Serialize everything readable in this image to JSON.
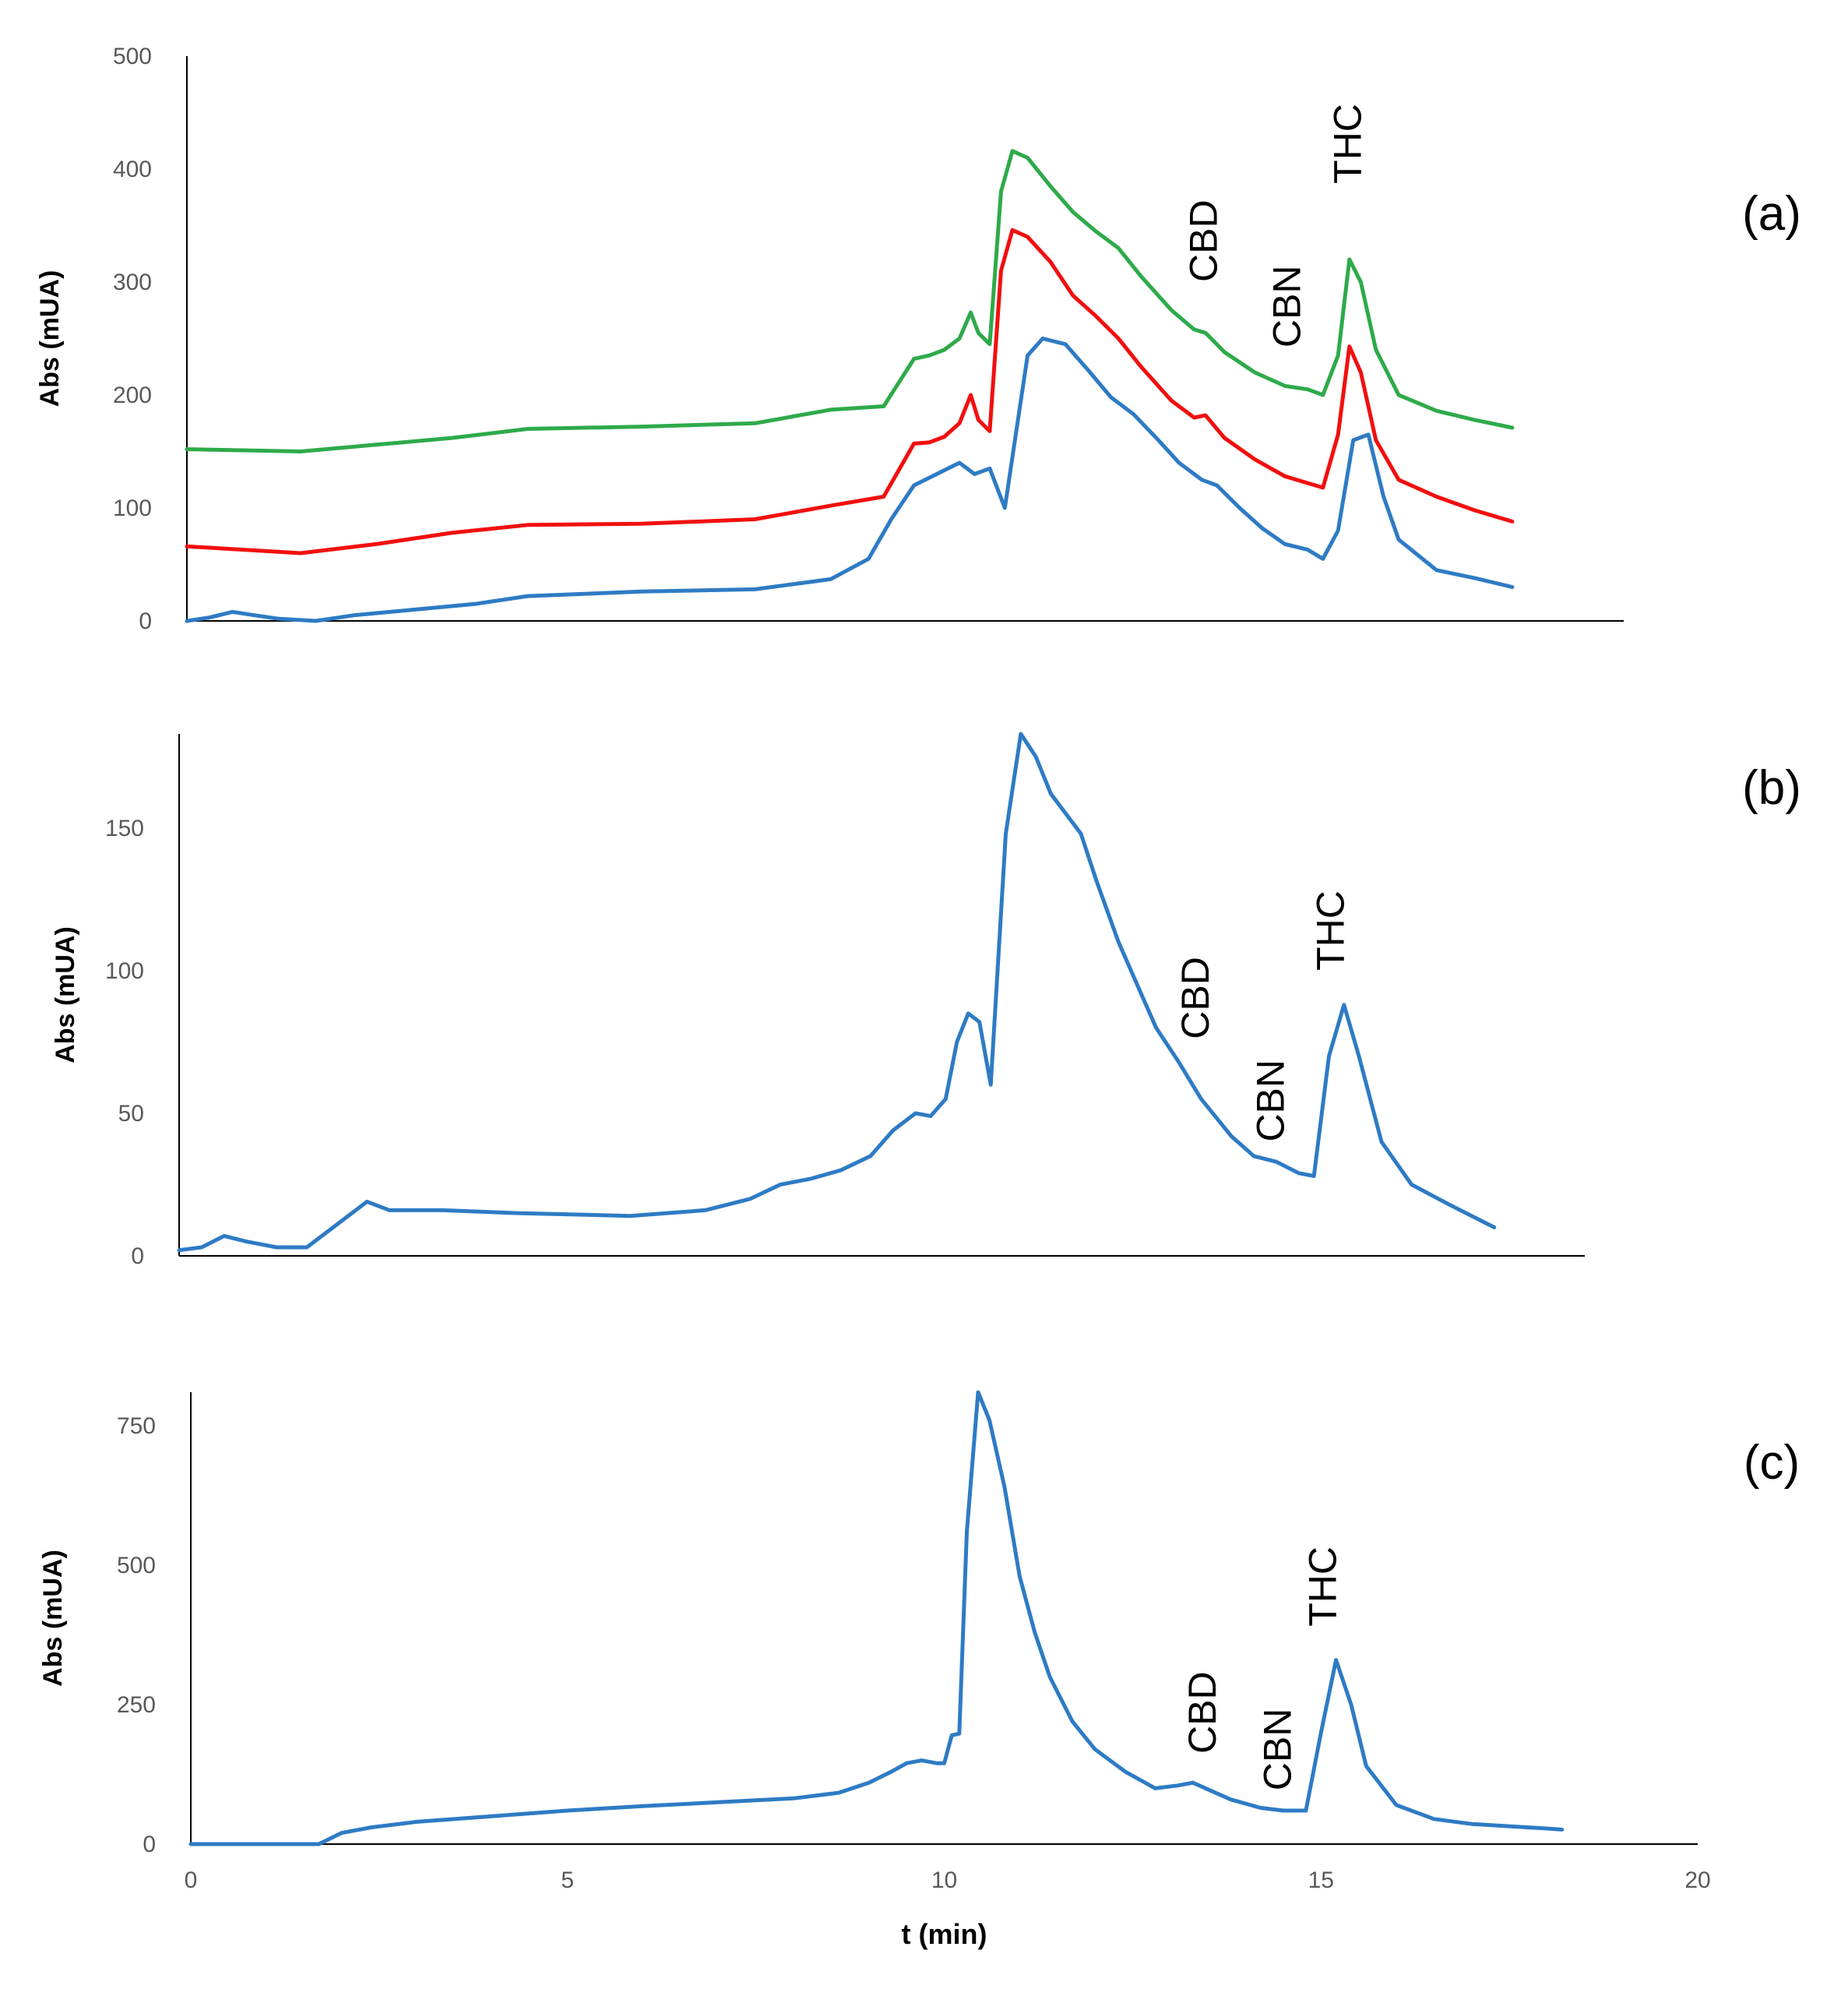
{
  "chart_data": [
    {
      "type": "line",
      "panel_label": "(a)",
      "ylabel": "Abs (mUA)",
      "xlabel": "",
      "xlim": [
        0,
        20
      ],
      "ylim": [
        0,
        500
      ],
      "yticks": [
        0,
        100,
        200,
        300,
        400,
        500
      ],
      "xticks": [],
      "annotations": [
        {
          "text": "CBD",
          "x": 13.6,
          "y": 300
        },
        {
          "text": "CBN",
          "x": 14.7,
          "y": 242
        },
        {
          "text": "THC",
          "x": 15.5,
          "y": 387
        }
      ],
      "series": [
        {
          "name": "green",
          "color": "#2eaa4a",
          "x": [
            0,
            1.5,
            2.5,
            3.5,
            4.5,
            6,
            7.5,
            8.5,
            9.2,
            9.6,
            9.8,
            10,
            10.2,
            10.35,
            10.45,
            10.6,
            10.75,
            10.9,
            11.1,
            11.4,
            11.7,
            12.0,
            12.3,
            12.6,
            13.0,
            13.3,
            13.45,
            13.7,
            14.1,
            14.5,
            14.8,
            15.0,
            15.2,
            15.35,
            15.5,
            15.7,
            16.0,
            16.5,
            17.0,
            17.5
          ],
          "y": [
            152,
            150,
            156,
            162,
            170,
            172,
            175,
            187,
            190,
            232,
            235,
            240,
            250,
            273,
            255,
            245,
            380,
            416,
            410,
            385,
            362,
            345,
            330,
            305,
            275,
            258,
            255,
            238,
            220,
            208,
            205,
            200,
            235,
            320,
            300,
            240,
            200,
            186,
            178,
            171
          ]
        },
        {
          "name": "red",
          "color": "#f20f0f",
          "x": [
            0,
            1.5,
            2.5,
            3.5,
            4.5,
            6,
            7.5,
            8.5,
            9.2,
            9.6,
            9.8,
            10,
            10.2,
            10.35,
            10.45,
            10.6,
            10.75,
            10.9,
            11.1,
            11.4,
            11.7,
            12.0,
            12.3,
            12.6,
            13.0,
            13.3,
            13.45,
            13.7,
            14.1,
            14.5,
            14.8,
            15.0,
            15.2,
            15.35,
            15.5,
            15.7,
            16.0,
            16.5,
            17.0,
            17.5
          ],
          "y": [
            66,
            60,
            68,
            78,
            85,
            86,
            90,
            102,
            110,
            157,
            158,
            163,
            175,
            200,
            178,
            168,
            310,
            346,
            340,
            318,
            288,
            270,
            250,
            225,
            195,
            180,
            182,
            162,
            143,
            128,
            122,
            118,
            165,
            243,
            220,
            160,
            125,
            110,
            98,
            88
          ]
        },
        {
          "name": "blue",
          "color": "#2e7bc4",
          "x": [
            0,
            0.3,
            0.6,
            0.9,
            1.2,
            1.7,
            2.2,
            3.0,
            3.8,
            4.5,
            6.0,
            7.5,
            8.5,
            9.0,
            9.3,
            9.6,
            9.9,
            10.2,
            10.4,
            10.6,
            10.8,
            11.1,
            11.3,
            11.6,
            11.9,
            12.2,
            12.5,
            12.8,
            13.1,
            13.4,
            13.6,
            13.9,
            14.2,
            14.5,
            14.8,
            15.0,
            15.2,
            15.4,
            15.6,
            15.8,
            16.0,
            16.5,
            17.0,
            17.5
          ],
          "y": [
            0,
            3,
            8,
            5,
            2,
            0,
            5,
            10,
            15,
            22,
            26,
            28,
            37,
            55,
            90,
            120,
            130,
            140,
            130,
            135,
            100,
            235,
            250,
            245,
            222,
            198,
            183,
            162,
            140,
            125,
            120,
            100,
            82,
            68,
            63,
            55,
            80,
            160,
            165,
            110,
            72,
            45,
            38,
            30
          ]
        }
      ]
    },
    {
      "type": "line",
      "panel_label": "(b)",
      "ylabel": "Abs (mUA)",
      "xlabel": "",
      "xlim": [
        0,
        20
      ],
      "ylim": [
        0,
        183
      ],
      "yticks": [
        0,
        50,
        100,
        150
      ],
      "xticks": [],
      "annotations": [
        {
          "text": "CBD",
          "x": 13.7,
          "y": 76
        },
        {
          "text": "CBN",
          "x": 14.7,
          "y": 40
        },
        {
          "text": "THC",
          "x": 15.5,
          "y": 100
        }
      ],
      "series": [
        {
          "name": "blue",
          "color": "#2e7bc4",
          "x": [
            0,
            0.3,
            0.6,
            0.9,
            1.3,
            1.7,
            2.2,
            2.5,
            2.8,
            3.5,
            4.5,
            6.0,
            7.0,
            7.6,
            8.0,
            8.4,
            8.8,
            9.2,
            9.5,
            9.8,
            10.0,
            10.2,
            10.35,
            10.5,
            10.65,
            10.8,
            11.0,
            11.2,
            11.4,
            11.6,
            11.8,
            12.0,
            12.2,
            12.5,
            12.8,
            13.0,
            13.3,
            13.6,
            14.0,
            14.3,
            14.6,
            14.9,
            15.1,
            15.3,
            15.5,
            15.7,
            16.0,
            16.4,
            16.9,
            17.5
          ],
          "y": [
            2,
            3,
            7,
            5,
            3,
            3,
            13,
            19,
            16,
            16,
            15,
            14,
            16,
            20,
            25,
            27,
            30,
            35,
            44,
            50,
            49,
            55,
            75,
            85,
            82,
            60,
            148,
            183,
            175,
            162,
            155,
            148,
            132,
            110,
            92,
            80,
            68,
            55,
            42,
            35,
            33,
            29,
            28,
            70,
            88,
            70,
            40,
            25,
            18,
            10
          ]
        }
      ]
    },
    {
      "type": "line",
      "panel_label": "(c)",
      "ylabel": "Abs (mUA)",
      "xlabel": "t (min)",
      "xlim": [
        0,
        20
      ],
      "ylim": [
        0,
        810
      ],
      "yticks": [
        0,
        250,
        500,
        750
      ],
      "xticks": [
        0,
        5,
        10,
        15,
        20
      ],
      "annotations": [
        {
          "text": "CBD",
          "x": 13.6,
          "y": 162
        },
        {
          "text": "CBN",
          "x": 14.6,
          "y": 96
        },
        {
          "text": "THC",
          "x": 15.2,
          "y": 390
        }
      ],
      "series": [
        {
          "name": "blue",
          "color": "#2e7bc4",
          "x": [
            0,
            1.0,
            1.7,
            2.0,
            2.4,
            3.0,
            4.0,
            5.0,
            6.0,
            7.0,
            8.0,
            8.6,
            9.0,
            9.3,
            9.5,
            9.7,
            9.9,
            10.0,
            10.1,
            10.2,
            10.3,
            10.45,
            10.6,
            10.8,
            11.0,
            11.2,
            11.4,
            11.7,
            12.0,
            12.4,
            12.8,
            13.1,
            13.3,
            13.5,
            13.8,
            14.2,
            14.5,
            14.8,
            15.0,
            15.2,
            15.4,
            15.6,
            16.0,
            16.5,
            17.0,
            17.5,
            18.0,
            18.2
          ],
          "y": [
            0,
            0,
            0,
            20,
            30,
            40,
            50,
            60,
            68,
            75,
            82,
            92,
            110,
            130,
            145,
            150,
            145,
            145,
            195,
            198,
            560,
            810,
            760,
            640,
            480,
            380,
            300,
            220,
            170,
            130,
            100,
            105,
            110,
            98,
            80,
            65,
            60,
            60,
            200,
            330,
            250,
            140,
            70,
            45,
            36,
            32,
            28,
            26
          ]
        }
      ]
    }
  ]
}
